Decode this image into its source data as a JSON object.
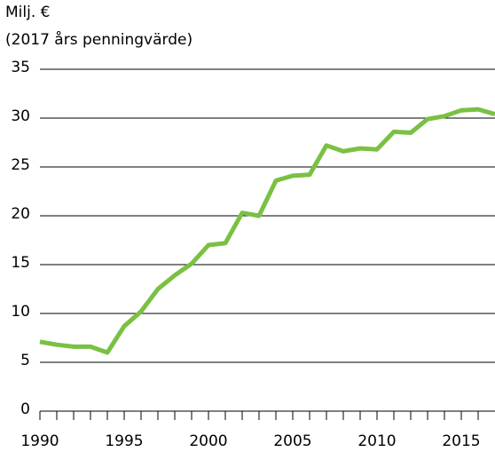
{
  "chart_data": {
    "type": "line",
    "title": "Milj. €",
    "subtitle": "(2017 års penningvärde)",
    "x": [
      1990,
      1991,
      1992,
      1993,
      1994,
      1995,
      1996,
      1997,
      1998,
      1999,
      2000,
      2001,
      2002,
      2003,
      2004,
      2005,
      2006,
      2007,
      2008,
      2009,
      2010,
      2011,
      2012,
      2013,
      2014,
      2015,
      2016,
      2017
    ],
    "series": [
      {
        "name": "Milj. €",
        "color": "#7ac143",
        "values": [
          7.1,
          6.8,
          6.6,
          6.6,
          6.0,
          8.7,
          10.2,
          12.5,
          13.9,
          15.1,
          17.0,
          17.2,
          20.3,
          20.0,
          23.6,
          24.1,
          24.2,
          27.2,
          26.6,
          26.9,
          26.8,
          28.6,
          28.5,
          29.9,
          30.2,
          30.8,
          30.9,
          30.4
        ]
      }
    ],
    "xlim": [
      1990,
      2017
    ],
    "xticks": [
      1990,
      1995,
      2000,
      2005,
      2010,
      2015
    ],
    "ylim": [
      0,
      35
    ],
    "yticks": [
      0,
      5,
      10,
      15,
      20,
      25,
      30,
      35
    ],
    "grid": true
  }
}
